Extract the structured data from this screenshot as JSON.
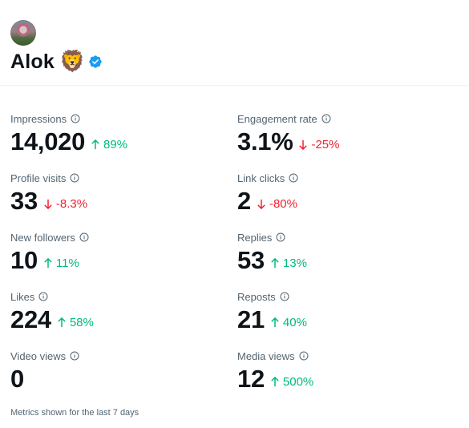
{
  "profile": {
    "name": "Alok",
    "emoji": "🦁",
    "verified": true,
    "accent_color": "#1d9bf0"
  },
  "metrics": [
    {
      "label": "Impressions",
      "value": "14,020",
      "change": "89%",
      "direction": "up"
    },
    {
      "label": "Engagement rate",
      "value": "3.1%",
      "change": "-25%",
      "direction": "down"
    },
    {
      "label": "Profile visits",
      "value": "33",
      "change": "-8.3%",
      "direction": "down"
    },
    {
      "label": "Link clicks",
      "value": "2",
      "change": "-80%",
      "direction": "down"
    },
    {
      "label": "New followers",
      "value": "10",
      "change": "11%",
      "direction": "up"
    },
    {
      "label": "Replies",
      "value": "53",
      "change": "13%",
      "direction": "up"
    },
    {
      "label": "Likes",
      "value": "224",
      "change": "58%",
      "direction": "up"
    },
    {
      "label": "Reposts",
      "value": "21",
      "change": "40%",
      "direction": "up"
    },
    {
      "label": "Video views",
      "value": "0",
      "change": "",
      "direction": "none"
    },
    {
      "label": "Media views",
      "value": "12",
      "change": "500%",
      "direction": "up"
    }
  ],
  "colors": {
    "positive": "#00ba7c",
    "negative": "#f4212e",
    "muted_text": "#536471"
  },
  "footer": {
    "note": "Metrics shown for the last 7 days"
  }
}
